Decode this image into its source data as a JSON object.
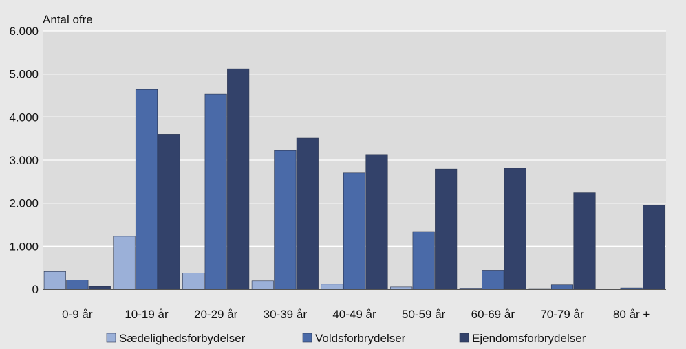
{
  "colors": {
    "page_bg": "#e8e8e8",
    "plot_bg": "#dcdcdc",
    "grid": "#ffffff",
    "axis": "#222222"
  },
  "chart_data": {
    "type": "bar",
    "title": "",
    "xlabel": "",
    "ylabel": "Antal ofre",
    "ylim": [
      0,
      6000
    ],
    "yticks": [
      0,
      1000,
      2000,
      3000,
      4000,
      5000,
      6000
    ],
    "ytick_labels": [
      "0",
      "1.000",
      "2.000",
      "3.000",
      "4.000",
      "5.000",
      "6.000"
    ],
    "grid": true,
    "legend_position": "bottom",
    "categories": [
      "0-9 år",
      "10-19 år",
      "20-29 år",
      "30-39 år",
      "40-49 år",
      "50-59 år",
      "60-69 år",
      "70-79 år",
      "80 år +"
    ],
    "series": [
      {
        "name": "Sædelighedsforbydelser",
        "color": "#9bb0d8",
        "values": [
          410,
          1230,
          375,
          195,
          115,
          50,
          25,
          15,
          10
        ]
      },
      {
        "name": "Voldsforbrydelser",
        "color": "#4a6aa8",
        "values": [
          215,
          4640,
          4530,
          3220,
          2700,
          1340,
          440,
          100,
          30
        ]
      },
      {
        "name": "Ejendomsforbrydelser",
        "color": "#33426a",
        "values": [
          60,
          3600,
          5120,
          3510,
          3130,
          2790,
          2810,
          2240,
          1950
        ]
      }
    ]
  }
}
